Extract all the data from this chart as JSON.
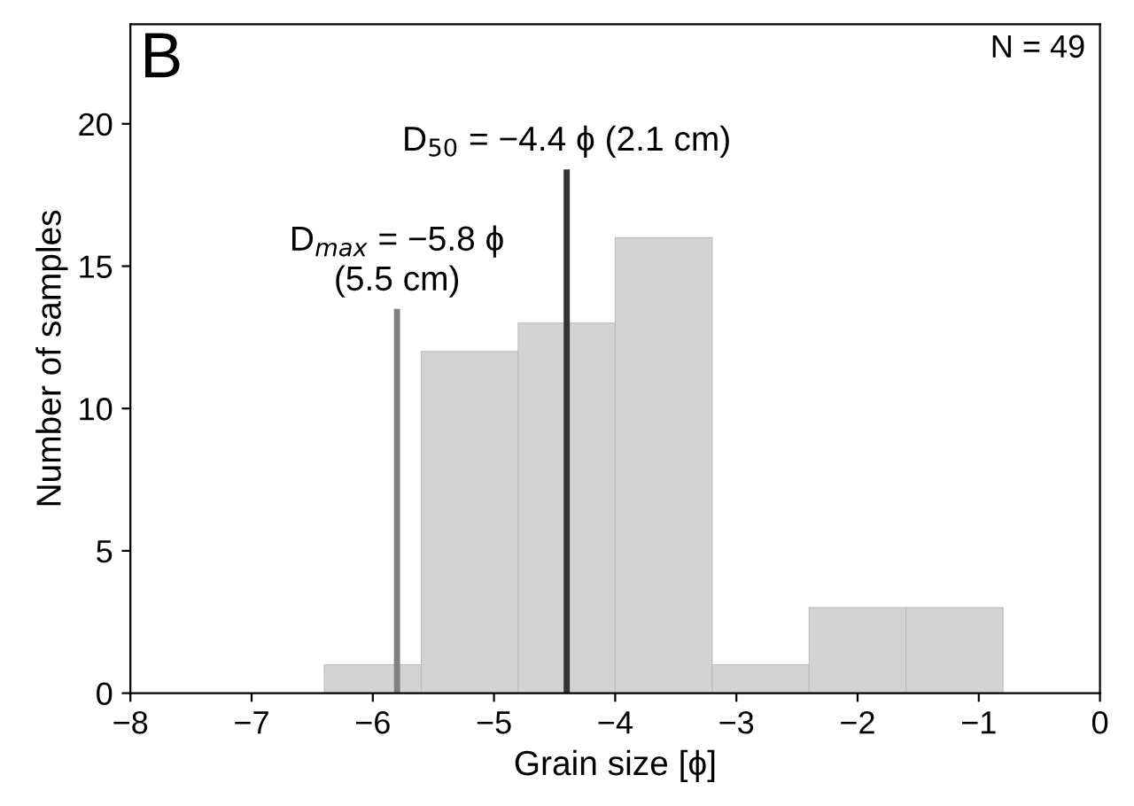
{
  "chart_data": {
    "type": "histogram",
    "title": "B",
    "xlabel": "Grain size [ϕ]",
    "ylabel": "Number of samples",
    "bins": [
      -6.4,
      -5.6,
      -4.8,
      -4.0,
      -3.2,
      -2.4,
      -1.6,
      -0.8
    ],
    "values": [
      1,
      12,
      13,
      16,
      1,
      3,
      3
    ],
    "color": "#d3d3d3",
    "xlim": [
      -8,
      0
    ],
    "xticks": [
      {
        "value": -8,
        "label": "−8"
      },
      {
        "value": -7,
        "label": "−7"
      },
      {
        "value": -6,
        "label": "−6"
      },
      {
        "value": -5,
        "label": "−5"
      },
      {
        "value": -4,
        "label": "−4"
      },
      {
        "value": -3,
        "label": "−3"
      },
      {
        "value": -2,
        "label": "−2"
      },
      {
        "value": -1,
        "label": "−1"
      },
      0
    ],
    "ylim": [
      0,
      23.5
    ],
    "yticks": [
      0,
      5,
      10,
      15,
      20
    ],
    "ref_lines": [
      {
        "axis": "x",
        "value": -5.8,
        "color": "#808080"
      },
      {
        "axis": "x",
        "value": -4.4,
        "color": "#333333"
      }
    ],
    "annotations": [
      {
        "text": "D$_{max}$ = −5.8 ϕ\n(5.5 cm)",
        "x": -5.8,
        "y": 13.5
      },
      {
        "text": "D$_{50}$ = −4.4 ϕ (2.1 cm)",
        "x": -4.4,
        "y": 18.4
      },
      "N = 49"
    ]
  }
}
